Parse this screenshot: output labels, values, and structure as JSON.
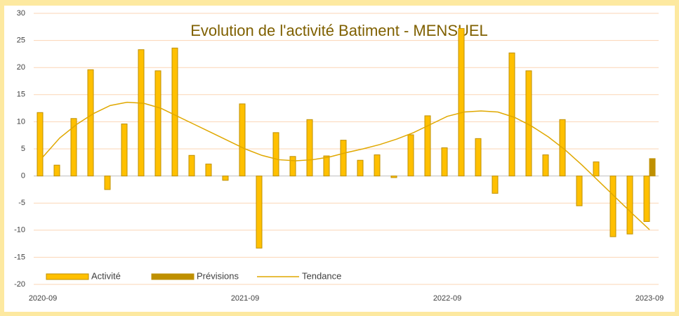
{
  "chart_data": {
    "type": "bar",
    "title": "Evolution de l'activité Batiment - MENSUEL",
    "categories": [
      "2020-09",
      null,
      null,
      null,
      null,
      null,
      null,
      null,
      null,
      null,
      null,
      null,
      "2021-09",
      null,
      null,
      null,
      null,
      null,
      null,
      null,
      null,
      null,
      null,
      null,
      "2022-09",
      null,
      null,
      null,
      null,
      null,
      null,
      null,
      null,
      null,
      null,
      null,
      "2023-09"
    ],
    "series": [
      {
        "name": "Activité",
        "color": "#ffc000",
        "values": [
          11.7,
          2.0,
          10.6,
          19.6,
          -2.5,
          9.6,
          23.3,
          19.4,
          23.6,
          3.8,
          2.2,
          -0.8,
          13.3,
          -13.3,
          8.0,
          3.6,
          10.4,
          3.7,
          6.6,
          2.9,
          3.9,
          -0.3,
          7.6,
          11.1,
          5.2,
          27.2,
          6.9,
          -3.2,
          22.7,
          19.4,
          3.9,
          10.4,
          -5.5,
          2.6,
          -11.2,
          -10.7,
          -8.4
        ]
      },
      {
        "name": "Prévisions",
        "color": "#bf9000",
        "values": [
          null,
          null,
          null,
          null,
          null,
          null,
          null,
          null,
          null,
          null,
          null,
          null,
          null,
          null,
          null,
          null,
          null,
          null,
          null,
          null,
          null,
          null,
          null,
          null,
          null,
          null,
          null,
          null,
          null,
          null,
          null,
          null,
          null,
          null,
          null,
          null,
          3.2
        ]
      },
      {
        "name": "Tendance",
        "type": "line",
        "color": "#e0a800",
        "values": [
          3.5,
          7,
          9.5,
          11.5,
          13,
          13.6,
          13.4,
          12.5,
          11,
          9.5,
          8,
          6.5,
          5,
          3.8,
          3,
          2.8,
          3,
          3.5,
          4.3,
          5,
          5.8,
          6.8,
          8,
          9.5,
          11,
          11.8,
          12,
          11.8,
          10.8,
          9.2,
          7.2,
          4.8,
          2,
          -1,
          -4,
          -7,
          -9.9
        ]
      }
    ],
    "ylim": [
      -20,
      30
    ],
    "yticks": [
      -20,
      -15,
      -10,
      -5,
      0,
      5,
      10,
      15,
      20,
      25,
      30
    ],
    "grid": true,
    "legend": "bottom-left"
  }
}
